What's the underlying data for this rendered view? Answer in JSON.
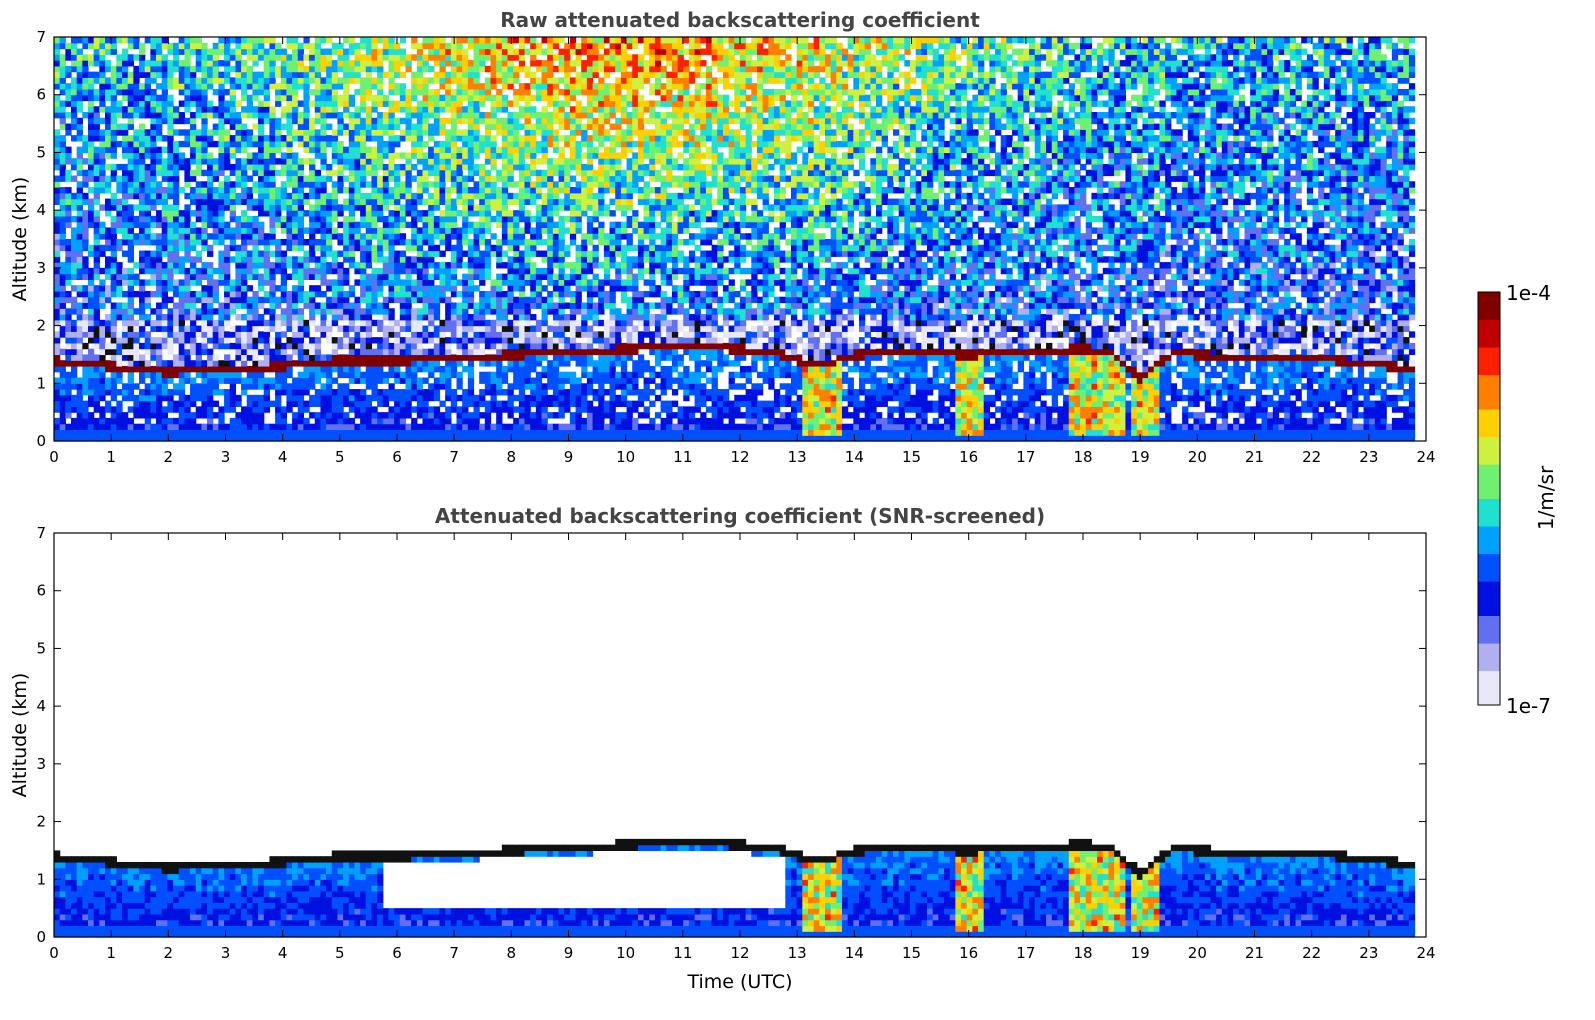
{
  "chart_data": [
    {
      "type": "heatmap",
      "title": "Raw attenuated backscattering coefficient",
      "xlabel": "",
      "ylabel": "Altitude (km)",
      "xlim": [
        0,
        24
      ],
      "ylim": [
        0,
        7
      ],
      "xticks": [
        "0",
        "1",
        "2",
        "3",
        "4",
        "5",
        "6",
        "7",
        "8",
        "9",
        "10",
        "11",
        "12",
        "13",
        "14",
        "15",
        "16",
        "17",
        "18",
        "19",
        "20",
        "21",
        "22",
        "23",
        "24"
      ],
      "yticks": [
        "0",
        "1",
        "2",
        "3",
        "4",
        "5",
        "6",
        "7"
      ],
      "data_end_time": 23.8,
      "layer_top_km": [
        [
          0,
          1.4
        ],
        [
          1,
          1.3
        ],
        [
          2,
          1.2
        ],
        [
          3,
          1.25
        ],
        [
          4,
          1.3
        ],
        [
          5,
          1.4
        ],
        [
          6,
          1.4
        ],
        [
          7,
          1.45
        ],
        [
          8,
          1.5
        ],
        [
          9,
          1.55
        ],
        [
          10,
          1.6
        ],
        [
          11,
          1.65
        ],
        [
          12,
          1.6
        ],
        [
          12.8,
          1.5
        ],
        [
          13.2,
          1.35
        ],
        [
          13.5,
          1.3
        ],
        [
          13.8,
          1.45
        ],
        [
          14,
          1.5
        ],
        [
          15,
          1.55
        ],
        [
          16,
          1.5
        ],
        [
          17,
          1.55
        ],
        [
          18,
          1.6
        ],
        [
          18.5,
          1.55
        ],
        [
          19,
          1.1
        ],
        [
          19.3,
          1.35
        ],
        [
          19.6,
          1.55
        ],
        [
          20,
          1.5
        ],
        [
          21,
          1.45
        ],
        [
          22,
          1.45
        ],
        [
          23,
          1.35
        ],
        [
          23.8,
          1.25
        ]
      ],
      "screened": false
    },
    {
      "type": "heatmap",
      "title": "Attenuated backscattering coefficient (SNR-screened)",
      "xlabel": "Time (UTC)",
      "ylabel": "Altitude (km)",
      "xlim": [
        0,
        24
      ],
      "ylim": [
        0,
        7
      ],
      "xticks": [
        "0",
        "1",
        "2",
        "3",
        "4",
        "5",
        "6",
        "7",
        "8",
        "9",
        "10",
        "11",
        "12",
        "13",
        "14",
        "15",
        "16",
        "17",
        "18",
        "19",
        "20",
        "21",
        "22",
        "23",
        "24"
      ],
      "yticks": [
        "0",
        "1",
        "2",
        "3",
        "4",
        "5",
        "6",
        "7"
      ],
      "data_end_time": 23.8,
      "layer_top_km": [
        [
          0,
          1.4
        ],
        [
          1,
          1.3
        ],
        [
          2,
          1.2
        ],
        [
          3,
          1.25
        ],
        [
          4,
          1.3
        ],
        [
          5,
          1.4
        ],
        [
          6,
          1.4
        ],
        [
          7,
          1.45
        ],
        [
          8,
          1.5
        ],
        [
          9,
          1.55
        ],
        [
          10,
          1.6
        ],
        [
          11,
          1.65
        ],
        [
          12,
          1.6
        ],
        [
          12.8,
          1.5
        ],
        [
          13.2,
          1.35
        ],
        [
          13.5,
          1.3
        ],
        [
          13.8,
          1.45
        ],
        [
          14,
          1.5
        ],
        [
          15,
          1.55
        ],
        [
          16,
          1.5
        ],
        [
          17,
          1.55
        ],
        [
          18,
          1.6
        ],
        [
          18.5,
          1.55
        ],
        [
          19,
          1.1
        ],
        [
          19.3,
          1.35
        ],
        [
          19.6,
          1.55
        ],
        [
          20,
          1.5
        ],
        [
          21,
          1.45
        ],
        [
          22,
          1.45
        ],
        [
          23,
          1.35
        ],
        [
          23.8,
          1.25
        ]
      ],
      "screened": true
    }
  ],
  "colorbar": {
    "max_label": "1e-4",
    "min_label": "1e-7",
    "unit_label": "1/m/sr",
    "colors": [
      "#e8e8f8",
      "#b0b0f0",
      "#6070f0",
      "#0010e0",
      "#0050ff",
      "#00a0ff",
      "#20e0d0",
      "#70f070",
      "#d0f040",
      "#ffd000",
      "#ff8000",
      "#ff2000",
      "#c00000",
      "#800000"
    ]
  }
}
